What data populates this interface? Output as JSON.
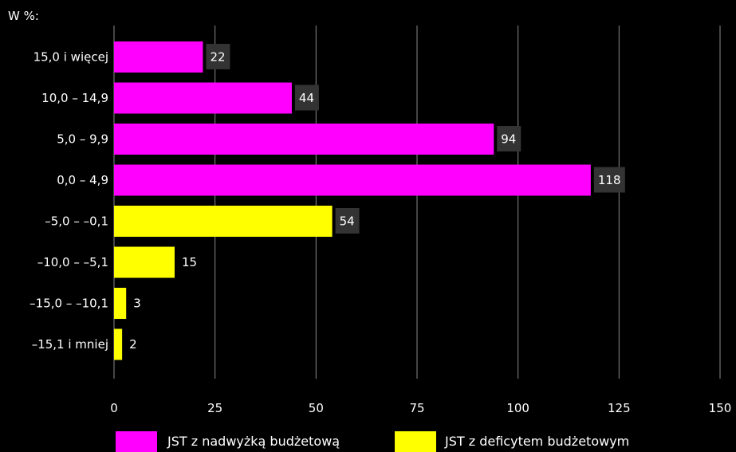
{
  "chart_data": {
    "type": "bar",
    "orientation": "horizontal",
    "unit_label": "W %:",
    "categories": [
      "15,0 i więcej",
      "10,0 – 14,9",
      "5,0 – 9,9",
      "0,0 – 4,9",
      "–5,0 – –0,1",
      "–10,0 – –5,1",
      "–15,0 – –10,1",
      "–15,1 i mniej"
    ],
    "values": [
      22,
      44,
      94,
      118,
      54,
      15,
      3,
      2
    ],
    "value_labels": [
      "22",
      "44",
      "94",
      "118",
      "54",
      "15",
      "3",
      "2"
    ],
    "series_index": [
      0,
      0,
      0,
      0,
      1,
      1,
      1,
      1
    ],
    "series": [
      {
        "name": "JST z nadwyżką budżetową",
        "color": "#ff00ff"
      },
      {
        "name": "JST z deficytem budżetowym",
        "color": "#ffff00"
      }
    ],
    "xlim": [
      0,
      150
    ],
    "xticks": [
      0,
      25,
      50,
      75,
      100,
      125,
      150
    ],
    "xtick_labels": [
      "0",
      "25",
      "50",
      "75",
      "100",
      "125",
      "150"
    ],
    "grid": true,
    "legend_position": "bottom",
    "value_label_box_color": "#333333",
    "grid_color": "#8a8a8a",
    "background": "#000000",
    "text_color": "#ffffff"
  }
}
